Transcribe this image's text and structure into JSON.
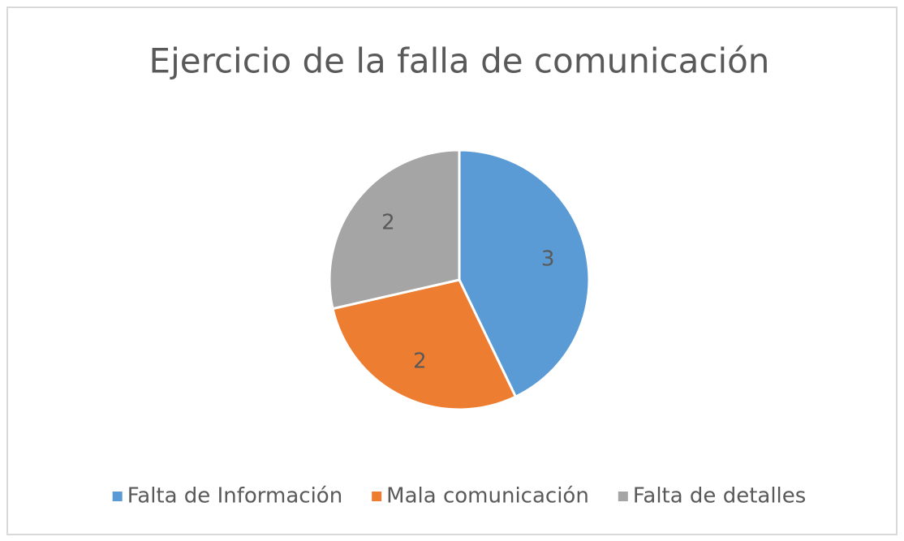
{
  "chart_data": {
    "type": "pie",
    "title": "Ejercicio de la falla de comunicación",
    "categories": [
      "Falta de Información",
      "Mala comunicación",
      "Falta de detalles"
    ],
    "values": [
      3,
      2,
      2
    ],
    "colors": [
      "#5b9bd5",
      "#ed7d31",
      "#a5a5a5"
    ],
    "legend": "bottom"
  }
}
